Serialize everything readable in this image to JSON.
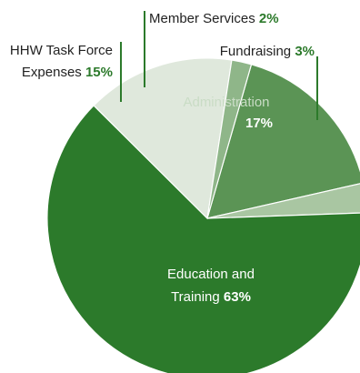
{
  "chart_data": {
    "type": "pie",
    "title": "",
    "slices": [
      {
        "label_lines": [
          "Administration"
        ],
        "value_text": "17%",
        "value": 17,
        "color": "#5b9455"
      },
      {
        "label_lines": [
          "Fundraising"
        ],
        "value_text": "3%",
        "value": 3,
        "color": "#a9c6a2"
      },
      {
        "label_lines": [
          "Education and",
          "Training"
        ],
        "value_text": "63%",
        "value": 63,
        "color": "#2c7a2b"
      },
      {
        "label_lines": [
          "HHW Task Force",
          "Expenses"
        ],
        "value_text": "15%",
        "value": 15,
        "color": "#dfe8dc"
      },
      {
        "label_lines": [
          "Member Services"
        ],
        "value_text": "2%",
        "value": 2,
        "color": "#8fb689"
      }
    ]
  },
  "colors": {
    "label_dark": "#222222",
    "label_value_green": "#2c7a2b",
    "label_inside_light": "#c9dcc5",
    "label_inside_white": "#ffffff",
    "leader_line": "#2c7a2b",
    "slice_stroke": "#ffffff"
  }
}
